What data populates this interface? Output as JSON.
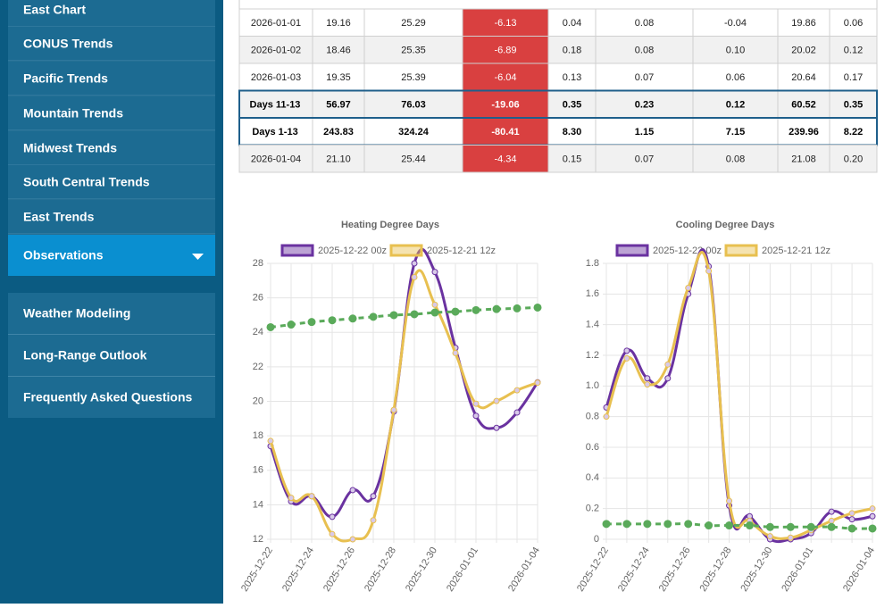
{
  "sidebar": {
    "menu": [
      "East Chart",
      "CONUS Trends",
      "Pacific Trends",
      "Mountain Trends",
      "Midwest Trends",
      "South Central Trends",
      "East Trends",
      "Observations"
    ],
    "menu2": [
      "Weather Modeling",
      "Long-Range Outlook",
      "Frequently Asked Questions"
    ]
  },
  "table": {
    "rows": [
      [
        "2026-01-01",
        "19.16",
        "25.29",
        "-6.13",
        "0.04",
        "0.08",
        "-0.04",
        "19.86",
        "0.06"
      ],
      [
        "2026-01-02",
        "18.46",
        "25.35",
        "-6.89",
        "0.18",
        "0.08",
        "0.10",
        "20.02",
        "0.12"
      ],
      [
        "2026-01-03",
        "19.35",
        "25.39",
        "-6.04",
        "0.13",
        "0.07",
        "0.06",
        "20.64",
        "0.17"
      ],
      [
        "Days 11-13",
        "56.97",
        "76.03",
        "-19.06",
        "0.35",
        "0.23",
        "0.12",
        "60.52",
        "0.35"
      ],
      [
        "Days 1-13",
        "243.83",
        "324.24",
        "-80.41",
        "8.30",
        "1.15",
        "7.15",
        "239.96",
        "8.22"
      ],
      [
        "2026-01-04",
        "21.10",
        "25.44",
        "-4.34",
        "0.15",
        "0.07",
        "0.08",
        "21.08",
        "0.20"
      ]
    ]
  },
  "chart_data": [
    {
      "type": "line",
      "title": "Heating Degree Days",
      "categories": [
        "2025-12-22",
        null,
        "2025-12-24",
        null,
        "2025-12-26",
        null,
        "2025-12-28",
        null,
        "2025-12-30",
        null,
        "2026-01-01",
        null,
        null,
        "2026-01-04"
      ],
      "series": [
        {
          "name": "2025-12-22 00z",
          "color": "#6a32a0",
          "values": [
            17.4,
            14.2,
            14.5,
            13.3,
            14.85,
            14.5,
            19.4,
            28.0,
            27.5,
            23.1,
            19.16,
            18.46,
            19.35,
            21.1
          ]
        },
        {
          "name": "2025-12-21 12z",
          "color": "#e8c050",
          "values": [
            17.7,
            14.4,
            14.5,
            12.3,
            12.0,
            13.1,
            19.5,
            27.2,
            25.6,
            22.8,
            19.86,
            20.02,
            20.64,
            21.08
          ]
        },
        {
          "color": "#5aaa5a",
          "dashed": true,
          "values": [
            24.3,
            24.45,
            24.6,
            24.7,
            24.8,
            24.9,
            25.0,
            25.05,
            25.15,
            25.2,
            25.29,
            25.35,
            25.39,
            25.44
          ]
        }
      ],
      "ylim": [
        12,
        28
      ],
      "yticks": [
        12,
        14,
        16,
        18,
        20,
        22,
        24,
        26,
        28
      ],
      "grid": true
    },
    {
      "type": "line",
      "title": "Cooling Degree Days",
      "categories": [
        "2025-12-22",
        null,
        "2025-12-24",
        null,
        "2025-12-26",
        null,
        "2025-12-28",
        null,
        "2025-12-30",
        null,
        "2026-01-01",
        null,
        null,
        "2026-01-04"
      ],
      "series": [
        {
          "name": "2025-12-22 00z",
          "color": "#6a32a0",
          "values": [
            0.86,
            1.23,
            1.05,
            1.05,
            1.6,
            1.78,
            0.22,
            0.15,
            0,
            0,
            0.04,
            0.18,
            0.13,
            0.15
          ]
        },
        {
          "name": "2025-12-21 12z",
          "color": "#e8c050",
          "values": [
            0.8,
            1.18,
            1.01,
            1.14,
            1.64,
            1.75,
            0.25,
            0.12,
            0.02,
            0.01,
            0.06,
            0.12,
            0.17,
            0.2
          ]
        },
        {
          "color": "#5aaa5a",
          "dashed": true,
          "values": [
            0.1,
            0.1,
            0.1,
            0.1,
            0.1,
            0.09,
            0.09,
            0.09,
            0.08,
            0.08,
            0.08,
            0.08,
            0.07,
            0.07
          ]
        }
      ],
      "ylim": [
        0,
        1.8
      ],
      "yticks": [
        0,
        0.2,
        0.4,
        0.6,
        0.8,
        {
          "value": 1,
          "label": "1.0"
        },
        1.2,
        1.4,
        1.6,
        1.8
      ],
      "grid": true
    }
  ]
}
